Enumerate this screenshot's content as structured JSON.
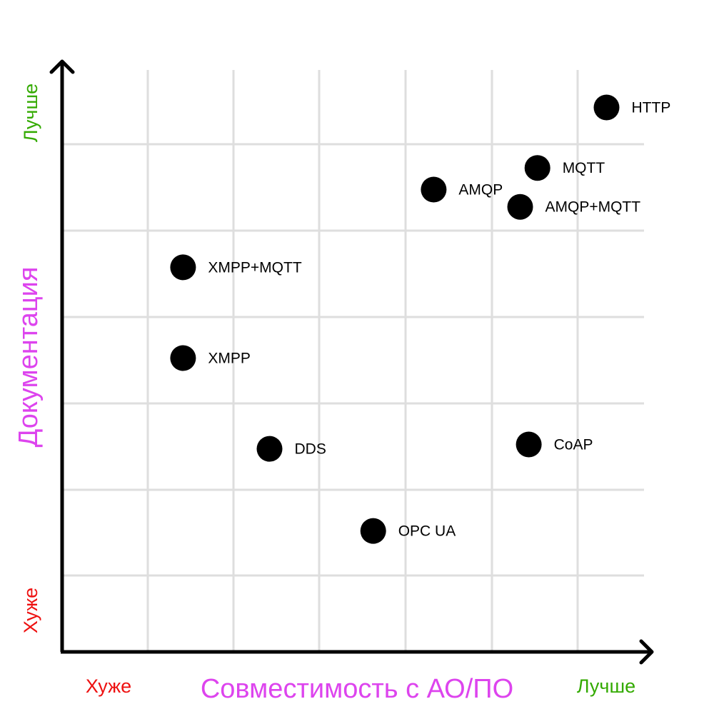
{
  "chart_data": {
    "type": "scatter",
    "xlabel": "Совместимость с АО/ПО",
    "ylabel": "Документация",
    "x_low_label": "Хуже",
    "x_high_label": "Лучше",
    "y_low_label": "Хуже",
    "y_high_label": "Лучше",
    "xlim": [
      0,
      6.8
    ],
    "ylim": [
      0,
      6.8
    ],
    "grid": true,
    "points": [
      {
        "label": "HTTP",
        "x": 6.3,
        "y": 6.3
      },
      {
        "label": "MQTT",
        "x": 5.5,
        "y": 5.6
      },
      {
        "label": "AMQP",
        "x": 4.3,
        "y": 5.35
      },
      {
        "label": "AMQP+MQTT",
        "x": 5.3,
        "y": 5.15
      },
      {
        "label": "XMPP+MQTT",
        "x": 1.4,
        "y": 4.45
      },
      {
        "label": "XMPP",
        "x": 1.4,
        "y": 3.4
      },
      {
        "label": "DDS",
        "x": 2.4,
        "y": 2.35
      },
      {
        "label": "CoAP",
        "x": 5.4,
        "y": 2.4
      },
      {
        "label": "OPC UA",
        "x": 3.6,
        "y": 1.4
      }
    ]
  },
  "colors": {
    "axis_title": "#dd44ee",
    "worse": "#ee1111",
    "better": "#33aa00",
    "grid": "#dedede",
    "point": "#000000"
  }
}
